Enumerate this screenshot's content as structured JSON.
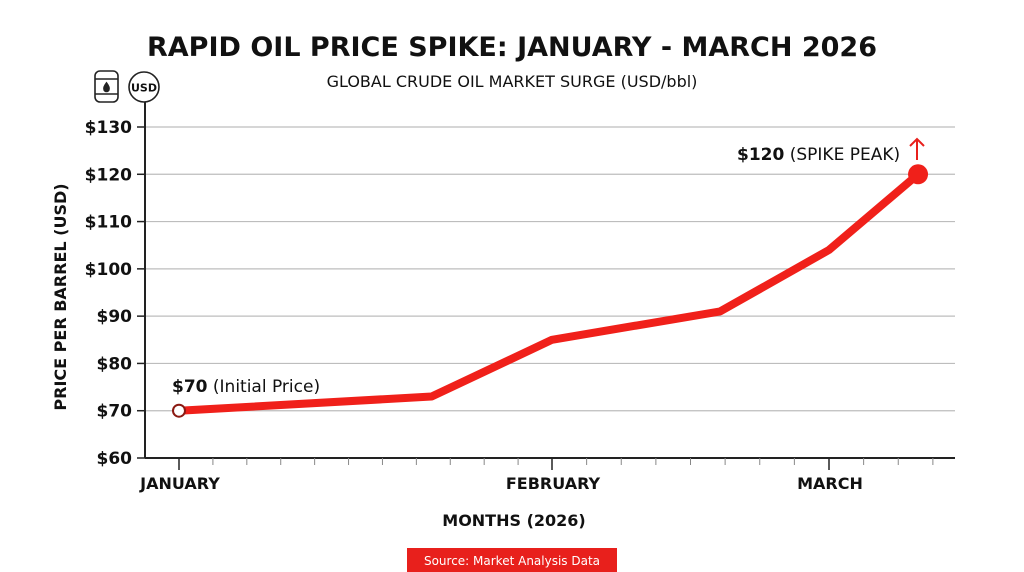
{
  "chart_data": {
    "type": "line",
    "title": "RAPID OIL PRICE SPIKE: JANUARY - MARCH 2026",
    "subtitle": "GLOBAL CRUDE OIL MARKET SURGE (USD/bbl)",
    "xlabel": "MONTHS (2026)",
    "ylabel": "PRICE PER BARREL (USD)",
    "ylim": [
      60,
      130
    ],
    "y_ticks": [
      "$60",
      "$70",
      "$80",
      "$90",
      "$100",
      "$110",
      "$120",
      "$130"
    ],
    "y_tick_values": [
      60,
      70,
      80,
      90,
      100,
      110,
      120,
      130
    ],
    "x_ticks": [
      {
        "label": "JANUARY",
        "date": "2026-01-01"
      },
      {
        "label": "FEBRUARY",
        "date": "2026-02-01"
      },
      {
        "label": "MARCH",
        "date": "2026-03-01"
      }
    ],
    "grid": true,
    "series": [
      {
        "color": "#f0201a",
        "points": [
          {
            "x": "2026-01-01",
            "y": 70
          },
          {
            "x": "2026-01-22",
            "y": 73
          },
          {
            "x": "2026-02-01",
            "y": 85
          },
          {
            "x": "2026-02-18",
            "y": 91
          },
          {
            "x": "2026-03-01",
            "y": 104
          },
          {
            "x": "2026-03-10",
            "y": 120
          }
        ]
      }
    ],
    "annotations": [
      {
        "bold": "$70",
        "text": " (Initial Price)"
      },
      {
        "bold": "$120",
        "text": " (SPIKE PEAK)"
      }
    ]
  },
  "icons": {
    "left": "oil-barrel-icon",
    "right": "usd-coin-icon",
    "usd_text": "USD",
    "peak": "arrow-up-icon"
  },
  "source": {
    "text": "Source: Market Analysis Data",
    "color": "#e8201c"
  }
}
